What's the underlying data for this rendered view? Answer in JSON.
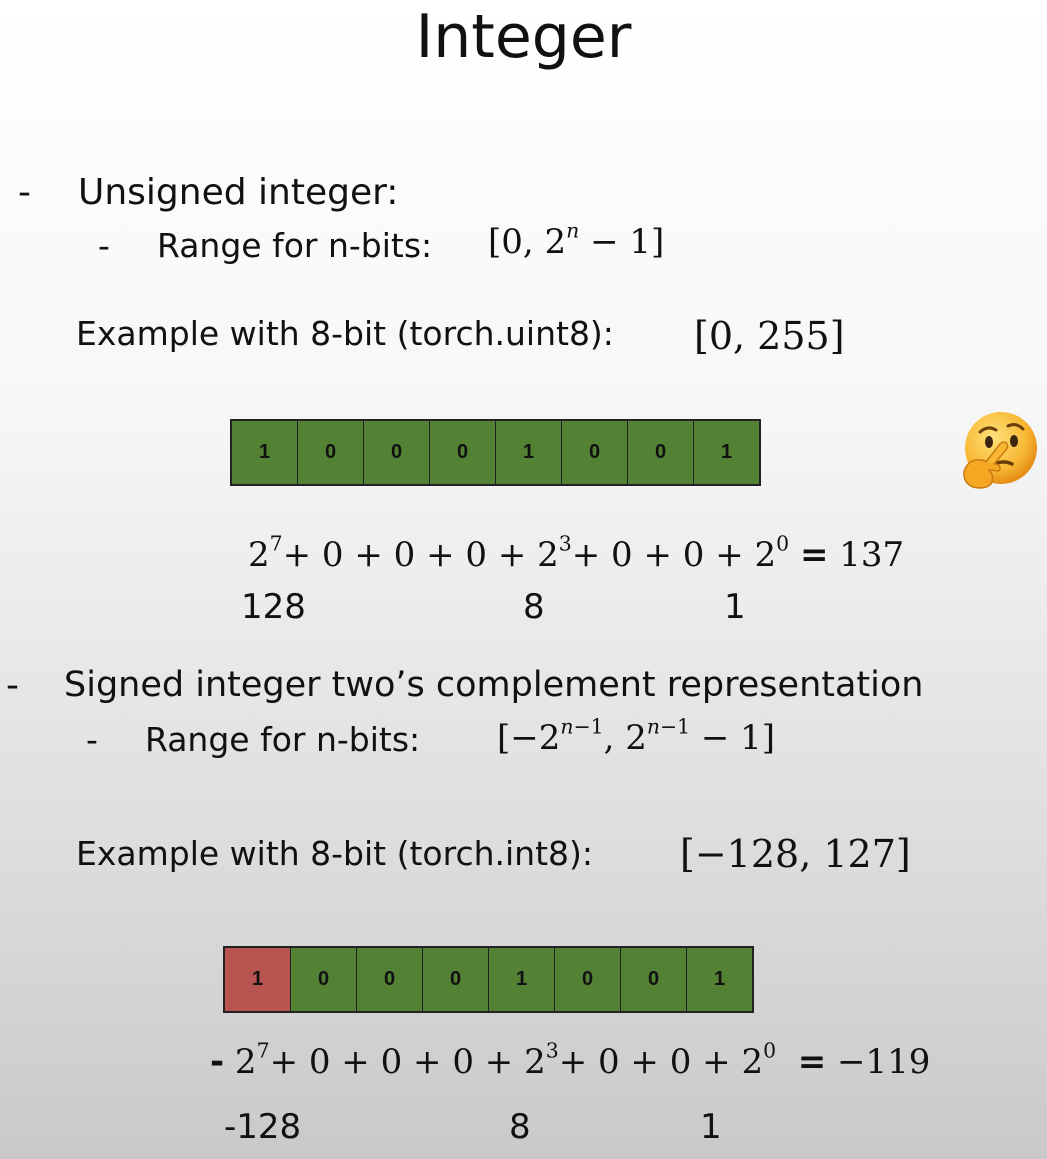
{
  "title": "Integer",
  "unsigned": {
    "heading": "Unsigned integer:",
    "range_label": "Range for n-bits:",
    "example_label": "Example with 8-bit (torch.uint8):",
    "example_range": "[0, 255]",
    "bits": [
      "1",
      "0",
      "0",
      "0",
      "1",
      "0",
      "0",
      "1"
    ],
    "equation": {
      "result": "137"
    },
    "values": [
      "128",
      "8",
      "1"
    ]
  },
  "signed": {
    "heading": "Signed integer two’s complement representation",
    "range_label": "Range for n-bits:",
    "example_label": "Example with 8-bit (torch.int8):",
    "example_range": "[−128, 127]",
    "bits": [
      "1",
      "0",
      "0",
      "0",
      "1",
      "0",
      "0",
      "1"
    ],
    "equation": {
      "result": "−119"
    },
    "values": [
      "-128",
      "8",
      "1"
    ]
  },
  "emoji_icon": "thinking-face-icon",
  "colors": {
    "bit_green": "#548235",
    "bit_red": "#b85450"
  }
}
